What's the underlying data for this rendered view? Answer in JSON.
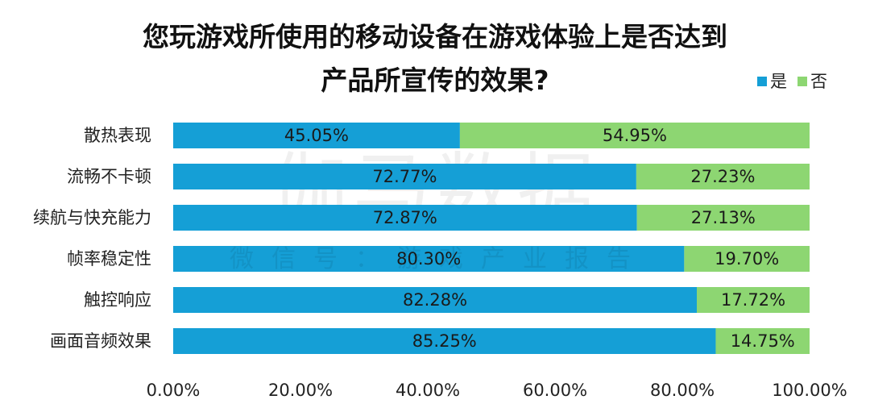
{
  "chart_data": {
    "type": "bar",
    "orientation": "horizontal",
    "stacked": true,
    "title_lines": [
      "您玩游戏所使用的移动设备在游戏体验上是否达到",
      "产品所宣传的效果?"
    ],
    "categories": [
      "散热表现",
      "流畅不卡顿",
      "续航与快充能力",
      "帧率稳定性",
      "触控响应",
      "画面音频效果"
    ],
    "series": [
      {
        "name": "是",
        "color": "#159fd6",
        "values": [
          45.05,
          72.77,
          72.87,
          80.3,
          82.28,
          85.25
        ],
        "labels": [
          "45.05%",
          "72.77%",
          "72.87%",
          "80.30%",
          "82.28%",
          "85.25%"
        ]
      },
      {
        "name": "否",
        "color": "#8dd672",
        "values": [
          54.95,
          27.23,
          27.13,
          19.7,
          17.72,
          14.75
        ],
        "labels": [
          "54.95%",
          "27.23%",
          "27.13%",
          "19.70%",
          "17.72%",
          "14.75%"
        ]
      }
    ],
    "xlim": [
      0,
      100
    ],
    "xticks": [
      0,
      20,
      40,
      60,
      80,
      100
    ],
    "xtick_labels": [
      "0.00%",
      "20.00%",
      "40.00%",
      "60.00%",
      "80.00%",
      "100.00%"
    ],
    "legend_position": "top-right",
    "grid": false,
    "watermark": {
      "main": "伽马数据",
      "sub": "微信号：游戏产业报告"
    }
  }
}
